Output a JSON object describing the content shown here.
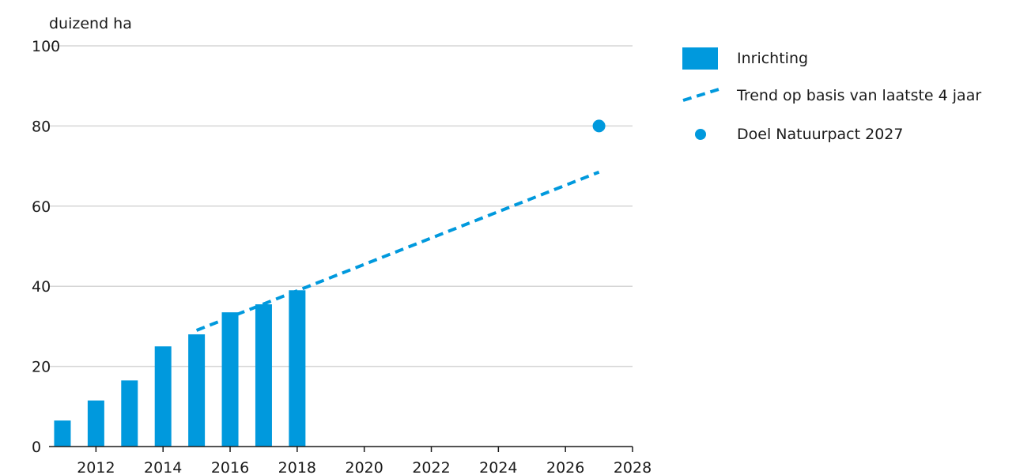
{
  "chart_data": {
    "type": "bar",
    "ylabel": "duizend ha",
    "ylim": [
      0,
      100
    ],
    "xlim": [
      2010.6,
      2028
    ],
    "yticks": [
      0,
      20,
      40,
      60,
      80,
      100
    ],
    "ytick_labels": [
      "0",
      "20",
      "40",
      "60",
      "80",
      "100"
    ],
    "xticks": [
      2012,
      2014,
      2016,
      2018,
      2020,
      2022,
      2024,
      2026,
      2028
    ],
    "xtick_labels": [
      "2012",
      "2014",
      "2016",
      "2018",
      "2020",
      "2022",
      "2024",
      "2026",
      "2028"
    ],
    "grid": true,
    "legend_position": "top-right",
    "colors": {
      "primary": "#0099dd",
      "grid": "#d6d6d6",
      "axis": "#1a1a1a"
    },
    "series": [
      {
        "name": "Inrichting",
        "kind": "bar",
        "x": [
          2011,
          2012,
          2013,
          2014,
          2015,
          2016,
          2017,
          2018
        ],
        "values": [
          6.5,
          11.5,
          16.5,
          25,
          28,
          33.5,
          35.5,
          39
        ]
      },
      {
        "name": "Trend op basis van laatste 4 jaar",
        "kind": "line-dashed",
        "x": [
          2015,
          2027
        ],
        "values": [
          29,
          68.5
        ]
      },
      {
        "name": "Doel Natuurpact 2027",
        "kind": "point",
        "x": [
          2027
        ],
        "values": [
          80
        ]
      }
    ]
  }
}
